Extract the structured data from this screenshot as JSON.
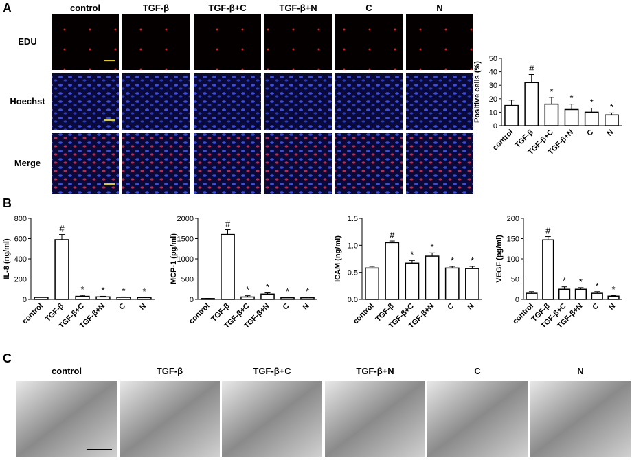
{
  "panels": {
    "a": "A",
    "b": "B",
    "c": "C"
  },
  "microscopy": {
    "columns": [
      "control",
      "TGF-β",
      "TGF-β+C",
      "TGF-β+N",
      "C",
      "N"
    ],
    "rows": [
      "EDU",
      "Hoechst",
      "Merge"
    ]
  },
  "em": {
    "columns": [
      "control",
      "TGF-β",
      "TGF-β+C",
      "TGF-β+N",
      "C",
      "N"
    ]
  },
  "chart_data": [
    {
      "type": "bar",
      "ylabel": "Positive cells (%)",
      "categories": [
        "control",
        "TGF-β",
        "TGF-β+C",
        "TGF-β+N",
        "C",
        "N"
      ],
      "values": [
        15,
        32,
        16,
        12,
        10,
        8
      ],
      "errors": [
        4,
        6,
        5,
        4,
        3,
        1.5
      ],
      "annotations": [
        null,
        "#",
        "*",
        "*",
        "*",
        "*"
      ],
      "ylim": [
        0,
        50
      ],
      "yticks": [
        0,
        10,
        20,
        30,
        40,
        50
      ],
      "color": "#ffffff"
    },
    {
      "type": "bar",
      "ylabel": "IL-8 (ng/ml)",
      "categories": [
        "control",
        "TGF-β",
        "TGF-β+C",
        "TGF-β+N",
        "C",
        "N"
      ],
      "values": [
        20,
        590,
        30,
        25,
        20,
        18
      ],
      "errors": [
        3,
        50,
        10,
        6,
        4,
        3
      ],
      "annotations": [
        null,
        "#",
        "*",
        "*",
        "*",
        "*"
      ],
      "ylim": [
        0,
        800
      ],
      "yticks": [
        0,
        200,
        400,
        600,
        800
      ],
      "color": "#ffffff"
    },
    {
      "type": "bar",
      "ylabel": "MCP-1 (pg/ml)",
      "categories": [
        "control",
        "TGF-β",
        "TGF-β+C",
        "TGF-β+N",
        "C",
        "N"
      ],
      "values": [
        20,
        1600,
        60,
        130,
        40,
        40
      ],
      "errors": [
        5,
        120,
        30,
        30,
        10,
        10
      ],
      "annotations": [
        null,
        "#",
        "*",
        "*",
        "*",
        "*"
      ],
      "ylim": [
        0,
        2000
      ],
      "yticks": [
        0,
        500,
        1000,
        1500,
        2000
      ],
      "color": "#ffffff"
    },
    {
      "type": "bar",
      "ylabel": "ICAM (ng/ml)",
      "categories": [
        "control",
        "TGF-β",
        "TGF-β+C",
        "TGF-β+N",
        "C",
        "N"
      ],
      "values": [
        0.58,
        1.05,
        0.67,
        0.8,
        0.58,
        0.57
      ],
      "errors": [
        0.03,
        0.03,
        0.05,
        0.06,
        0.03,
        0.04
      ],
      "annotations": [
        null,
        "#",
        "*",
        "*",
        "*",
        "*"
      ],
      "ylim": [
        0,
        1.5
      ],
      "yticks": [
        {
          "value": 0,
          "label": "0.0"
        },
        0.5,
        {
          "value": 1,
          "label": "1.0"
        },
        1.5
      ],
      "color": "#ffffff"
    },
    {
      "type": "bar",
      "ylabel": "VEGF (pg/ml)",
      "categories": [
        "control",
        "TGF-β",
        "TGF-β+C",
        "TGF-β+N",
        "C",
        "N"
      ],
      "values": [
        15,
        147,
        25,
        25,
        15,
        8
      ],
      "errors": [
        4,
        8,
        6,
        4,
        4,
        2
      ],
      "annotations": [
        null,
        "#",
        "*",
        "*",
        "*",
        "*"
      ],
      "ylim": [
        0,
        200
      ],
      "yticks": [
        0,
        50,
        100,
        150,
        200
      ],
      "color": "#ffffff"
    }
  ]
}
